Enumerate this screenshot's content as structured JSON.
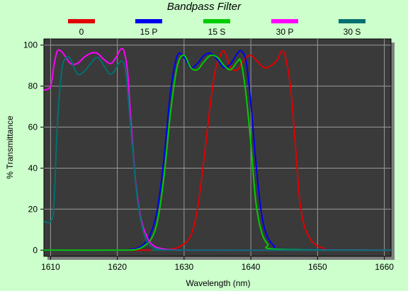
{
  "chart_data": {
    "type": "line",
    "title": "Bandpass Filter",
    "xlabel": "Wavelength (nm)",
    "ylabel": "% Transmittance",
    "xlim": [
      1609,
      1661
    ],
    "ylim": [
      -3,
      103
    ],
    "x_ticks": [
      "1610",
      "1620",
      "1630",
      "1640",
      "1650",
      "1660"
    ],
    "y_ticks": [
      "0",
      "20",
      "40",
      "60",
      "80",
      "100"
    ],
    "grid": true,
    "legend_position": "top",
    "plot_background": "#3a3a3a",
    "series": [
      {
        "name": "0",
        "color": "#e00000",
        "x": [
          1609,
          1626,
          1628,
          1629.5,
          1631,
          1632,
          1633,
          1634,
          1634.7,
          1635.3,
          1636,
          1637,
          1638,
          1639,
          1640,
          1641,
          1642,
          1643,
          1644,
          1644.6,
          1645.2,
          1646,
          1646.7,
          1647.3,
          1648,
          1649,
          1650,
          1651,
          1652,
          1661
        ],
        "y": [
          0,
          0,
          0.5,
          2,
          7,
          20,
          45,
          73,
          88,
          94,
          97,
          89,
          88,
          93,
          95,
          92,
          89,
          90,
          93,
          97,
          94,
          78,
          50,
          25,
          12,
          5,
          2,
          0.8,
          0.2,
          0
        ]
      },
      {
        "name": "15 P",
        "color": "#0000ee",
        "x": [
          1609,
          1620,
          1622,
          1623,
          1624,
          1625,
          1626,
          1627,
          1628,
          1629,
          1630,
          1631,
          1632,
          1633,
          1634,
          1635,
          1636,
          1637,
          1638,
          1638.6,
          1639.3,
          1640,
          1640.7,
          1641.5,
          1642.3,
          1643.5,
          1645,
          1661
        ],
        "y": [
          0,
          0,
          0.3,
          1,
          3,
          8,
          20,
          45,
          78,
          95,
          94,
          89,
          91,
          95,
          96,
          93,
          89,
          91,
          96,
          97,
          92,
          72,
          45,
          20,
          8,
          2,
          0.5,
          0
        ]
      },
      {
        "name": "15 S",
        "color": "#00cc00",
        "x": [
          1609,
          1621,
          1623,
          1624,
          1625,
          1626,
          1627,
          1628,
          1629,
          1630,
          1631,
          1632,
          1633,
          1634,
          1635,
          1636,
          1637,
          1638,
          1638.5,
          1639.2,
          1640,
          1640.7,
          1641.5,
          1642.5,
          1644,
          1661
        ],
        "y": [
          0,
          0,
          0.5,
          2,
          5,
          14,
          36,
          68,
          90,
          95,
          89,
          88,
          92,
          95,
          94,
          90,
          88,
          92,
          92,
          78,
          52,
          25,
          10,
          3,
          0.5,
          0
        ]
      },
      {
        "name": "30 P",
        "color": "#ff00ff",
        "x": [
          1609,
          1610,
          1610.5,
          1611,
          1611.6,
          1612.3,
          1613,
          1614,
          1615,
          1616,
          1617,
          1618,
          1619,
          1619.8,
          1620.5,
          1621,
          1621.5,
          1622,
          1622.7,
          1623.5,
          1624.5,
          1625.5,
          1627,
          1629,
          1631,
          1661
        ],
        "y": [
          78,
          80,
          90,
          97,
          97,
          94,
          91,
          91,
          94,
          96,
          96,
          93,
          91,
          94,
          98,
          97,
          88,
          65,
          35,
          16,
          6,
          2,
          0.5,
          0.1,
          0,
          0
        ]
      },
      {
        "name": "30 S",
        "color": "#007070",
        "x": [
          1609,
          1610,
          1610.5,
          1611,
          1611.7,
          1612.4,
          1613,
          1614,
          1615,
          1616,
          1617,
          1618,
          1618.8,
          1619.5,
          1620.2,
          1620.8,
          1621.3,
          1622,
          1623,
          1624,
          1625,
          1626.5,
          1628,
          1661
        ],
        "y": [
          14,
          14,
          22,
          60,
          88,
          94,
          93,
          86,
          87,
          91,
          94,
          90,
          86,
          87,
          91,
          92,
          86,
          60,
          25,
          8,
          2,
          0.3,
          0,
          0
        ]
      }
    ]
  }
}
